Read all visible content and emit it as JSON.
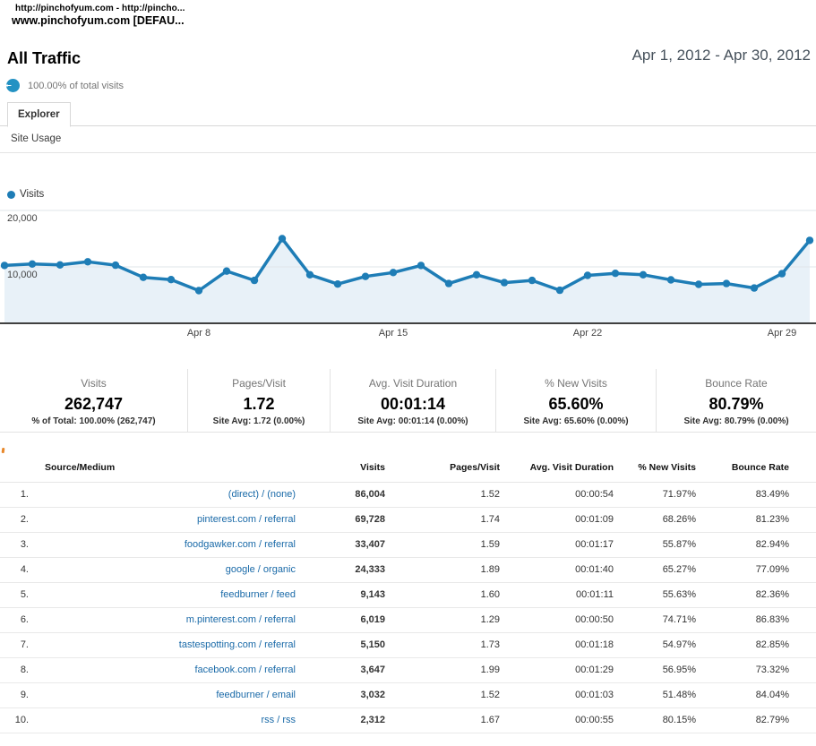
{
  "browser": {
    "line1": "http://pinchofyum.com - http://pincho...",
    "line2": "www.pinchofyum.com [DEFAU..."
  },
  "header": {
    "title": "All Traffic",
    "date_range": "Apr 1, 2012 - Apr 30, 2012",
    "segment_note": "100.00% of total visits"
  },
  "tabs": {
    "explorer_label": "Explorer",
    "subtab_label": "Site Usage"
  },
  "chart_data": {
    "type": "line",
    "title": "",
    "legend": "Visits",
    "x": [
      "Apr 1",
      "Apr 2",
      "Apr 3",
      "Apr 4",
      "Apr 5",
      "Apr 6",
      "Apr 7",
      "Apr 8",
      "Apr 9",
      "Apr 10",
      "Apr 11",
      "Apr 12",
      "Apr 13",
      "Apr 14",
      "Apr 15",
      "Apr 16",
      "Apr 17",
      "Apr 18",
      "Apr 19",
      "Apr 20",
      "Apr 21",
      "Apr 22",
      "Apr 23",
      "Apr 24",
      "Apr 25",
      "Apr 26",
      "Apr 27",
      "Apr 28",
      "Apr 29",
      "Apr 30"
    ],
    "series": [
      {
        "name": "Visits",
        "values": [
          10250,
          10500,
          10350,
          10900,
          10300,
          8150,
          7750,
          5800,
          9250,
          7600,
          15000,
          8600,
          6950,
          8300,
          9000,
          10250,
          7050,
          8600,
          7200,
          7600,
          5850,
          8500,
          8850,
          8600,
          7700,
          6900,
          7050,
          6250,
          8800,
          14700
        ]
      }
    ],
    "x_ticks": [
      "Apr 8",
      "Apr 15",
      "Apr 22",
      "Apr 29"
    ],
    "y_ticks": [
      10000,
      20000
    ],
    "ylim": [
      0,
      20000
    ],
    "grid": "horizontal",
    "legend_position": "top-left",
    "colors": {
      "line": "#1e7db6",
      "fill": "#e8f1f8",
      "grid": "#dfe5ea"
    }
  },
  "scorecards": [
    {
      "label": "Visits",
      "value": "262,747",
      "sub": "% of Total: 100.00% (262,747)"
    },
    {
      "label": "Pages/Visit",
      "value": "1.72",
      "sub": "Site Avg: 1.72 (0.00%)"
    },
    {
      "label": "Avg. Visit Duration",
      "value": "00:01:14",
      "sub": "Site Avg: 00:01:14 (0.00%)"
    },
    {
      "label": "% New Visits",
      "value": "65.60%",
      "sub": "Site Avg: 65.60% (0.00%)"
    },
    {
      "label": "Bounce Rate",
      "value": "80.79%",
      "sub": "Site Avg: 80.79% (0.00%)"
    }
  ],
  "table": {
    "columns": [
      "Source/Medium",
      "Visits",
      "Pages/Visit",
      "Avg. Visit Duration",
      "% New Visits",
      "Bounce Rate"
    ],
    "rows": [
      {
        "rank": "1.",
        "source": "(direct) / (none)",
        "visits": "86,004",
        "pages_per_visit": "1.52",
        "avg_duration": "00:00:54",
        "pct_new_visits": "71.97%",
        "bounce_rate": "83.49%"
      },
      {
        "rank": "2.",
        "source": "pinterest.com / referral",
        "visits": "69,728",
        "pages_per_visit": "1.74",
        "avg_duration": "00:01:09",
        "pct_new_visits": "68.26%",
        "bounce_rate": "81.23%"
      },
      {
        "rank": "3.",
        "source": "foodgawker.com / referral",
        "visits": "33,407",
        "pages_per_visit": "1.59",
        "avg_duration": "00:01:17",
        "pct_new_visits": "55.87%",
        "bounce_rate": "82.94%"
      },
      {
        "rank": "4.",
        "source": "google / organic",
        "visits": "24,333",
        "pages_per_visit": "1.89",
        "avg_duration": "00:01:40",
        "pct_new_visits": "65.27%",
        "bounce_rate": "77.09%"
      },
      {
        "rank": "5.",
        "source": "feedburner / feed",
        "visits": "9,143",
        "pages_per_visit": "1.60",
        "avg_duration": "00:01:11",
        "pct_new_visits": "55.63%",
        "bounce_rate": "82.36%"
      },
      {
        "rank": "6.",
        "source": "m.pinterest.com / referral",
        "visits": "6,019",
        "pages_per_visit": "1.29",
        "avg_duration": "00:00:50",
        "pct_new_visits": "74.71%",
        "bounce_rate": "86.83%"
      },
      {
        "rank": "7.",
        "source": "tastespotting.com / referral",
        "visits": "5,150",
        "pages_per_visit": "1.73",
        "avg_duration": "00:01:18",
        "pct_new_visits": "54.97%",
        "bounce_rate": "82.85%"
      },
      {
        "rank": "8.",
        "source": "facebook.com / referral",
        "visits": "3,647",
        "pages_per_visit": "1.99",
        "avg_duration": "00:01:29",
        "pct_new_visits": "56.95%",
        "bounce_rate": "73.32%"
      },
      {
        "rank": "9.",
        "source": "feedburner / email",
        "visits": "3,032",
        "pages_per_visit": "1.52",
        "avg_duration": "00:01:03",
        "pct_new_visits": "51.48%",
        "bounce_rate": "84.04%"
      },
      {
        "rank": "10.",
        "source": "rss / rss",
        "visits": "2,312",
        "pages_per_visit": "1.67",
        "avg_duration": "00:00:55",
        "pct_new_visits": "80.15%",
        "bounce_rate": "82.79%"
      }
    ]
  }
}
